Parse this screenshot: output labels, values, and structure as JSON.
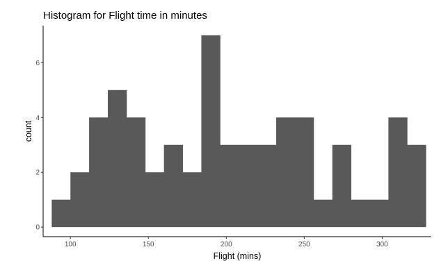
{
  "chart_data": {
    "type": "bar",
    "title": "Histogram for Flight time in minutes",
    "xlabel": "Flight (mins)",
    "ylabel": "count",
    "xlim": [
      82.5,
      331.5
    ],
    "ylim": [
      -0.35,
      7.35
    ],
    "x_ticks": [
      100,
      150,
      200,
      250,
      300
    ],
    "y_ticks": [
      0,
      2,
      4,
      6
    ],
    "bin_width": 6,
    "bins": [
      {
        "start": 88,
        "end": 94,
        "count": 1
      },
      {
        "start": 94,
        "end": 100,
        "count": 1
      },
      {
        "start": 100,
        "end": 106,
        "count": 2
      },
      {
        "start": 106,
        "end": 112,
        "count": 2
      },
      {
        "start": 112,
        "end": 118,
        "count": 4
      },
      {
        "start": 118,
        "end": 124,
        "count": 4
      },
      {
        "start": 124,
        "end": 130,
        "count": 5
      },
      {
        "start": 130,
        "end": 136,
        "count": 5
      },
      {
        "start": 136,
        "end": 142,
        "count": 4
      },
      {
        "start": 142,
        "end": 148,
        "count": 4
      },
      {
        "start": 148,
        "end": 154,
        "count": 2
      },
      {
        "start": 154,
        "end": 160,
        "count": 2
      },
      {
        "start": 160,
        "end": 166,
        "count": 3
      },
      {
        "start": 166,
        "end": 172,
        "count": 3
      },
      {
        "start": 172,
        "end": 178,
        "count": 2
      },
      {
        "start": 178,
        "end": 184,
        "count": 2
      },
      {
        "start": 184,
        "end": 190,
        "count": 7
      },
      {
        "start": 190,
        "end": 196,
        "count": 7
      },
      {
        "start": 196,
        "end": 202,
        "count": 3
      },
      {
        "start": 202,
        "end": 208,
        "count": 3
      },
      {
        "start": 208,
        "end": 214,
        "count": 3
      },
      {
        "start": 214,
        "end": 220,
        "count": 3
      },
      {
        "start": 220,
        "end": 226,
        "count": 3
      },
      {
        "start": 226,
        "end": 232,
        "count": 3
      },
      {
        "start": 232,
        "end": 238,
        "count": 4
      },
      {
        "start": 238,
        "end": 244,
        "count": 4
      },
      {
        "start": 244,
        "end": 250,
        "count": 4
      },
      {
        "start": 250,
        "end": 256,
        "count": 4
      },
      {
        "start": 256,
        "end": 262,
        "count": 1
      },
      {
        "start": 262,
        "end": 268,
        "count": 1
      },
      {
        "start": 268,
        "end": 274,
        "count": 3
      },
      {
        "start": 274,
        "end": 280,
        "count": 3
      },
      {
        "start": 280,
        "end": 286,
        "count": 1
      },
      {
        "start": 286,
        "end": 292,
        "count": 1
      },
      {
        "start": 292,
        "end": 298,
        "count": 1
      },
      {
        "start": 298,
        "end": 304,
        "count": 1
      },
      {
        "start": 304,
        "end": 310,
        "count": 4
      },
      {
        "start": 310,
        "end": 316,
        "count": 4
      },
      {
        "start": 316,
        "end": 322,
        "count": 3
      },
      {
        "start": 322,
        "end": 328,
        "count": 3
      }
    ],
    "grid": false,
    "legend": "none",
    "bar_color": "#595959"
  }
}
